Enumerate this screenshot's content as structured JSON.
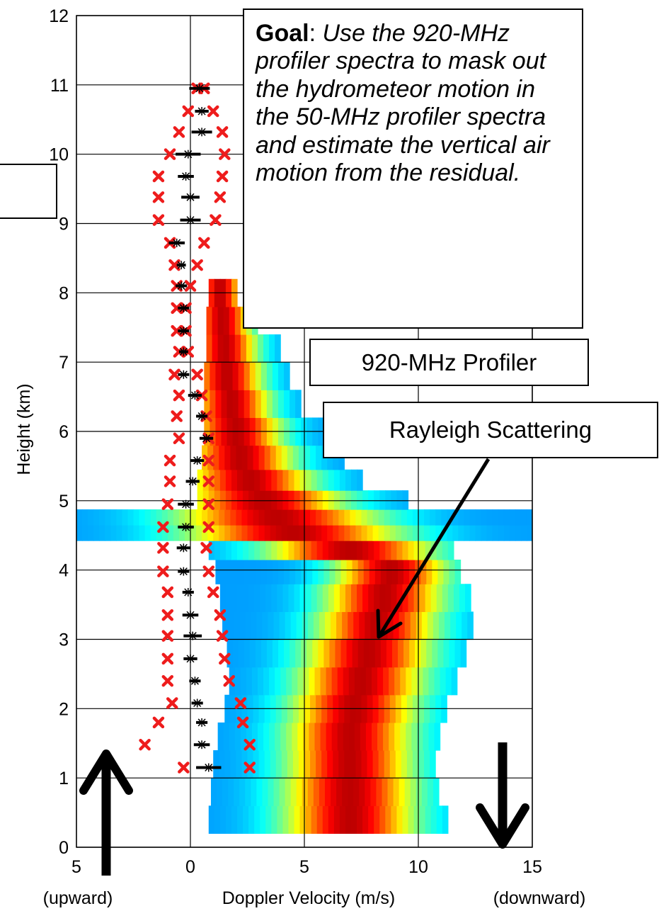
{
  "chart_data": {
    "type": "heatmap",
    "description_panel": "Doppler velocity spectra of the 920-MHz profiler versus height, with 50-MHz profiler air-motion estimates",
    "xlabel": "Doppler Velocity (m/s)",
    "xlabel_left": "(upward)",
    "xlabel_right": "(downward)",
    "ylabel": "Height (km)",
    "xlim": [
      -5,
      15
    ],
    "ylim": [
      0,
      12
    ],
    "x_ticks": [
      {
        "value": -5,
        "label": "5"
      },
      {
        "value": 0,
        "label": "0"
      },
      {
        "value": 5,
        "label": "5"
      },
      {
        "value": 10,
        "label": "10"
      },
      {
        "value": 15,
        "label": "15"
      }
    ],
    "y_ticks": [
      {
        "value": 0,
        "label": "0"
      },
      {
        "value": 1,
        "label": "1"
      },
      {
        "value": 2,
        "label": "2"
      },
      {
        "value": 3,
        "label": "3"
      },
      {
        "value": 4,
        "label": "4"
      },
      {
        "value": 5,
        "label": "5"
      },
      {
        "value": 6,
        "label": "6"
      },
      {
        "value": 7,
        "label": "7"
      },
      {
        "value": 8,
        "label": "8"
      },
      {
        "value": 9,
        "label": "9"
      },
      {
        "value": 10,
        "label": "10"
      },
      {
        "value": 11,
        "label": "11"
      },
      {
        "value": 12,
        "label": "12"
      }
    ],
    "grid": true,
    "spectrum_rows": [
      {
        "h": 0.4,
        "l": 0.8,
        "r": 11.3,
        "c": 7.0,
        "w": 2.0
      },
      {
        "h": 0.8,
        "l": 0.9,
        "r": 10.8,
        "c": 7.0,
        "w": 2.0
      },
      {
        "h": 1.2,
        "l": 1.0,
        "r": 10.6,
        "c": 7.0,
        "w": 1.9
      },
      {
        "h": 1.6,
        "l": 1.2,
        "r": 10.9,
        "c": 7.0,
        "w": 1.9
      },
      {
        "h": 2.0,
        "l": 1.5,
        "r": 11.2,
        "c": 7.2,
        "w": 1.9
      },
      {
        "h": 2.4,
        "l": 1.7,
        "r": 11.7,
        "c": 7.5,
        "w": 1.9
      },
      {
        "h": 2.8,
        "l": 1.6,
        "r": 12.0,
        "c": 7.8,
        "w": 1.9
      },
      {
        "h": 3.2,
        "l": 1.4,
        "r": 12.2,
        "c": 8.2,
        "w": 1.8
      },
      {
        "h": 3.6,
        "l": 1.3,
        "r": 12.1,
        "c": 8.5,
        "w": 1.8
      },
      {
        "h": 4.0,
        "l": 1.1,
        "r": 11.8,
        "c": 8.8,
        "w": 1.7
      },
      {
        "h": 4.3,
        "l": 0.8,
        "r": 11.5,
        "c": 7.0,
        "w": 2.5
      },
      {
        "h": 4.55,
        "l": -5.0,
        "r": 15.0,
        "c": 4.5,
        "w": 3.2
      },
      {
        "h": 4.75,
        "l": -5.0,
        "r": 15.0,
        "c": 3.8,
        "w": 3.0
      },
      {
        "h": 5.0,
        "l": 0.3,
        "r": 9.5,
        "c": 3.2,
        "w": 2.4
      },
      {
        "h": 5.3,
        "l": 0.3,
        "r": 7.5,
        "c": 2.6,
        "w": 1.9
      },
      {
        "h": 5.6,
        "l": 0.5,
        "r": 6.6,
        "c": 2.2,
        "w": 1.6
      },
      {
        "h": 6.0,
        "l": 0.6,
        "r": 5.8,
        "c": 2.0,
        "w": 1.4
      },
      {
        "h": 6.4,
        "l": 0.6,
        "r": 4.8,
        "c": 1.8,
        "w": 1.2
      },
      {
        "h": 6.8,
        "l": 0.6,
        "r": 4.3,
        "c": 1.6,
        "w": 1.1
      },
      {
        "h": 7.2,
        "l": 0.7,
        "r": 3.8,
        "c": 1.5,
        "w": 1.0
      },
      {
        "h": 7.6,
        "l": 0.7,
        "r": 2.9,
        "c": 1.4,
        "w": 0.9
      },
      {
        "h": 8.0,
        "l": 0.8,
        "r": 2.0,
        "c": 1.3,
        "w": 0.7
      }
    ],
    "series": [
      {
        "marker": "red-x",
        "points": [
          [
            0.6,
            10.95
          ],
          [
            0.3,
            10.95
          ],
          [
            -0.1,
            10.62
          ],
          [
            1.0,
            10.62
          ],
          [
            -0.5,
            10.32
          ],
          [
            1.4,
            10.32
          ],
          [
            -0.9,
            10.0
          ],
          [
            1.5,
            10.0
          ],
          [
            -1.4,
            9.68
          ],
          [
            1.4,
            9.68
          ],
          [
            -1.4,
            9.38
          ],
          [
            1.3,
            9.38
          ],
          [
            -1.4,
            9.05
          ],
          [
            1.1,
            9.05
          ],
          [
            -0.9,
            8.72
          ],
          [
            0.6,
            8.72
          ],
          [
            -0.7,
            8.4
          ],
          [
            0.3,
            8.4
          ],
          [
            -0.6,
            8.1
          ],
          [
            0.0,
            8.1
          ],
          [
            -0.6,
            7.78
          ],
          [
            -0.2,
            7.78
          ],
          [
            -0.6,
            7.45
          ],
          [
            -0.2,
            7.45
          ],
          [
            -0.5,
            7.15
          ],
          [
            -0.1,
            7.15
          ],
          [
            -0.7,
            6.82
          ],
          [
            0.3,
            6.82
          ],
          [
            -0.5,
            6.52
          ],
          [
            0.5,
            6.52
          ],
          [
            -0.6,
            6.22
          ],
          [
            0.7,
            6.22
          ],
          [
            -0.5,
            5.9
          ],
          [
            0.8,
            5.9
          ],
          [
            -0.9,
            5.58
          ],
          [
            0.8,
            5.58
          ],
          [
            -0.9,
            5.28
          ],
          [
            0.8,
            5.28
          ],
          [
            -1.0,
            4.95
          ],
          [
            0.8,
            4.95
          ],
          [
            -1.2,
            4.62
          ],
          [
            0.8,
            4.62
          ],
          [
            -1.2,
            4.32
          ],
          [
            0.7,
            4.32
          ],
          [
            -1.2,
            3.98
          ],
          [
            0.8,
            3.98
          ],
          [
            -1.0,
            3.68
          ],
          [
            1.0,
            3.68
          ],
          [
            -1.0,
            3.35
          ],
          [
            1.3,
            3.35
          ],
          [
            -1.0,
            3.05
          ],
          [
            1.4,
            3.05
          ],
          [
            -1.0,
            2.72
          ],
          [
            1.5,
            2.72
          ],
          [
            -1.0,
            2.4
          ],
          [
            1.7,
            2.4
          ],
          [
            -0.8,
            2.08
          ],
          [
            2.2,
            2.08
          ],
          [
            -1.4,
            1.8
          ],
          [
            2.3,
            1.8
          ],
          [
            -2.0,
            1.48
          ],
          [
            2.6,
            1.48
          ],
          [
            -0.3,
            1.15
          ],
          [
            2.6,
            1.15
          ]
        ]
      },
      {
        "marker": "black-star-bar",
        "points": [
          [
            0.4,
            10.95,
            0.9
          ],
          [
            0.5,
            10.62,
            0.6
          ],
          [
            0.5,
            10.32,
            0.9
          ],
          [
            -0.1,
            10.0,
            1.1
          ],
          [
            -0.2,
            9.68,
            0.7
          ],
          [
            0.0,
            9.38,
            0.8
          ],
          [
            0.0,
            9.05,
            0.9
          ],
          [
            -0.6,
            8.72,
            0.7
          ],
          [
            -0.4,
            8.4,
            0.4
          ],
          [
            -0.4,
            8.1,
            0.5
          ],
          [
            -0.3,
            7.78,
            0.5
          ],
          [
            -0.3,
            7.45,
            0.5
          ],
          [
            -0.3,
            7.15,
            0.4
          ],
          [
            -0.3,
            6.82,
            0.5
          ],
          [
            0.2,
            6.52,
            0.6
          ],
          [
            0.5,
            6.22,
            0.5
          ],
          [
            0.7,
            5.9,
            0.6
          ],
          [
            0.3,
            5.58,
            0.6
          ],
          [
            0.1,
            5.28,
            0.6
          ],
          [
            -0.2,
            4.95,
            0.7
          ],
          [
            -0.2,
            4.62,
            0.7
          ],
          [
            -0.3,
            4.32,
            0.6
          ],
          [
            -0.3,
            3.98,
            0.5
          ],
          [
            -0.1,
            3.68,
            0.5
          ],
          [
            0.0,
            3.35,
            0.7
          ],
          [
            0.1,
            3.05,
            0.8
          ],
          [
            0.0,
            2.72,
            0.6
          ],
          [
            0.2,
            2.4,
            0.5
          ],
          [
            0.3,
            2.08,
            0.5
          ],
          [
            0.5,
            1.8,
            0.5
          ],
          [
            0.5,
            1.48,
            0.7
          ],
          [
            0.8,
            1.15,
            1.1
          ]
        ]
      }
    ]
  },
  "annotations": {
    "goal_label": "Goal",
    "goal_sep": ": ",
    "goal_text": "Use the 920-MHz profiler spectra to mask out the hydrometeor motion in the 50-MHz profiler spectra and estimate the vertical air motion from the residual.",
    "profiler_label": "920-MHz Profiler",
    "rayleigh_label": "Rayleigh Scattering"
  },
  "colors": {
    "colormap": "jet",
    "red_marker": "#ee1c1c",
    "black_marker": "#000000",
    "grid": "#000000"
  }
}
